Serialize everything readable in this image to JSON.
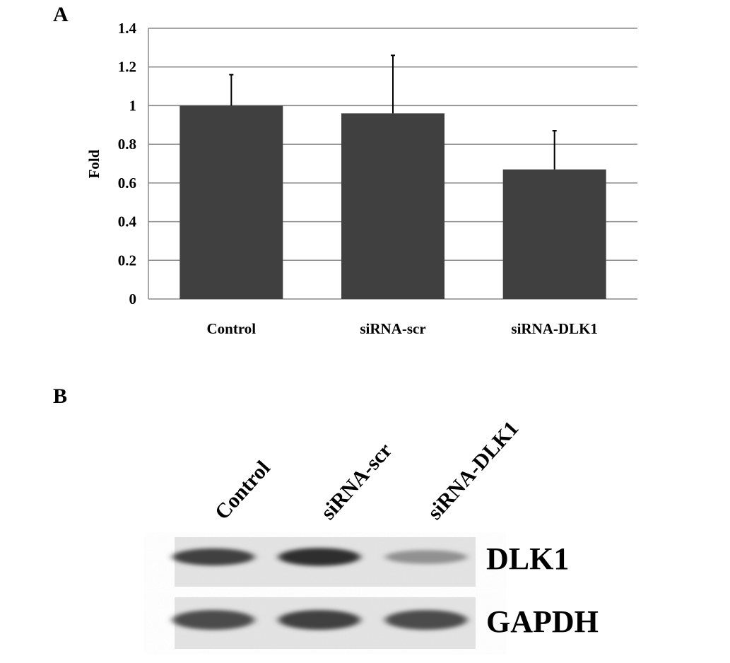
{
  "panels": {
    "a_label": "A",
    "b_label": "B"
  },
  "chart_data": {
    "type": "bar",
    "title": "",
    "xlabel": "",
    "ylabel": "Fold",
    "ylim": [
      0,
      1.4
    ],
    "yticks": [
      "0",
      "0.2",
      "0.4",
      "0.6",
      "0.8",
      "1",
      "1.2",
      "1.4"
    ],
    "grid": true,
    "categories": [
      "Control",
      "siRNA-scr",
      "siRNA-DLK1"
    ],
    "values": [
      1.0,
      0.96,
      0.67
    ],
    "error_upper": [
      0.16,
      0.3,
      0.2
    ],
    "bar_color": "#404040"
  },
  "blot": {
    "lanes": [
      "Control",
      "siRNA-scr",
      "siRNA-DLK1"
    ],
    "rows": [
      {
        "label": "DLK1",
        "intensity": [
          0.85,
          0.95,
          0.45
        ]
      },
      {
        "label": "GAPDH",
        "intensity": [
          0.8,
          0.85,
          0.8
        ]
      }
    ]
  }
}
